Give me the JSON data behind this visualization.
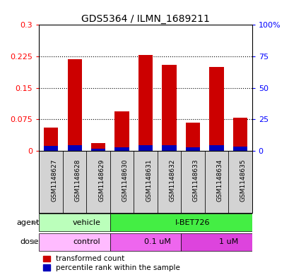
{
  "title": "GDS5364 / ILMN_1689211",
  "samples": [
    "GSM1148627",
    "GSM1148628",
    "GSM1148629",
    "GSM1148630",
    "GSM1148631",
    "GSM1148632",
    "GSM1148633",
    "GSM1148634",
    "GSM1148635"
  ],
  "red_values": [
    0.055,
    0.218,
    0.018,
    0.095,
    0.228,
    0.205,
    0.068,
    0.2,
    0.08
  ],
  "blue_values": [
    0.012,
    0.013,
    0.005,
    0.008,
    0.013,
    0.013,
    0.008,
    0.013,
    0.01
  ],
  "ylim_left": [
    0,
    0.3
  ],
  "ylim_right": [
    0,
    100
  ],
  "yticks_left": [
    0,
    0.075,
    0.15,
    0.225,
    0.3
  ],
  "ytick_labels_left": [
    "0",
    "0.075",
    "0.15",
    "0.225",
    "0.3"
  ],
  "yticks_right": [
    0,
    25,
    50,
    75,
    100
  ],
  "ytick_labels_right": [
    "0",
    "25",
    "50",
    "75",
    "100%"
  ],
  "red_color": "#cc0000",
  "blue_color": "#0000bb",
  "agent_groups": [
    {
      "label": "vehicle",
      "start": 0,
      "end": 3,
      "color": "#bbffbb"
    },
    {
      "label": "I-BET726",
      "start": 3,
      "end": 9,
      "color": "#44ee44"
    }
  ],
  "dose_groups": [
    {
      "label": "control",
      "start": 0,
      "end": 3,
      "color": "#ffbbff"
    },
    {
      "label": "0.1 uM",
      "start": 3,
      "end": 6,
      "color": "#ee66ee"
    },
    {
      "label": "1 uM",
      "start": 6,
      "end": 9,
      "color": "#dd44dd"
    }
  ],
  "legend_red": "transformed count",
  "legend_blue": "percentile rank within the sample",
  "bar_width": 0.6,
  "sample_bg_color": "#d3d3d3",
  "arrow_color": "#888888"
}
